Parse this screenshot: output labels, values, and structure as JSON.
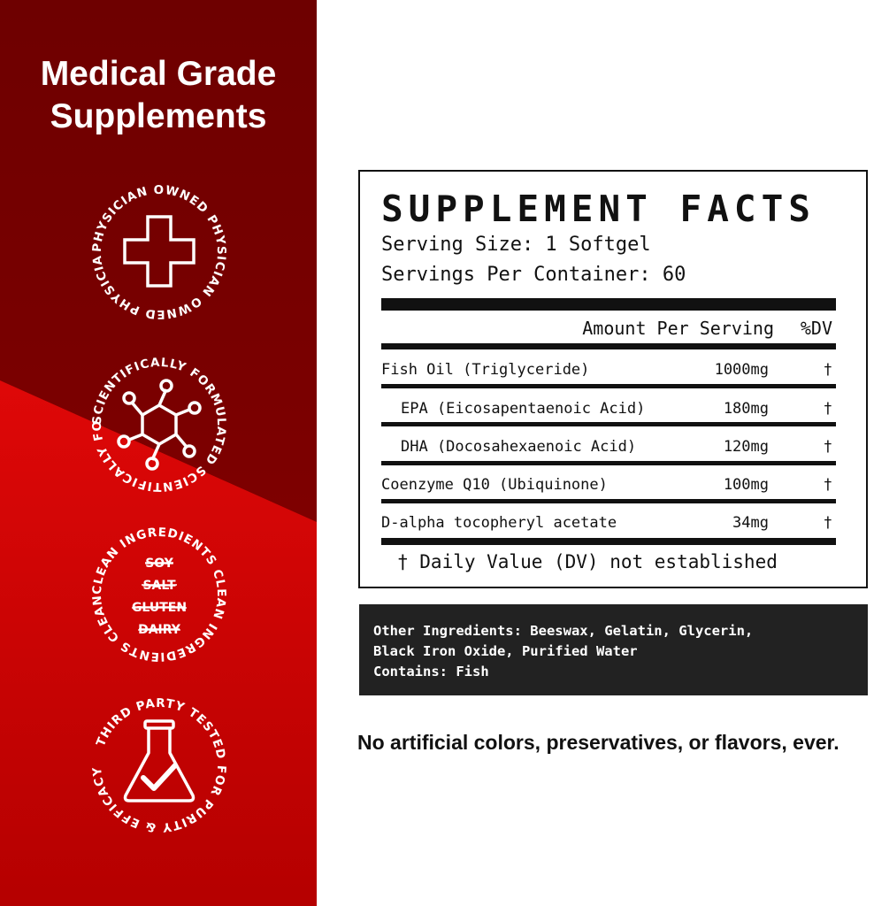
{
  "left_panel": {
    "headline": [
      "Medical Grade",
      "Supplements"
    ],
    "badges": [
      {
        "icon": "medical-cross-icon",
        "ring_text": "PHYSICIAN OWNED PHYSICIAN OWNED PHYSICIAN OWNED "
      },
      {
        "icon": "molecule-icon",
        "ring_text": "SCIENTIFICALLY FORMULATED SCIENTIFICALLY FORMULATED "
      },
      {
        "icon": "crossed-out-list",
        "ring_text": "CLEAN INGREDIENTS CLEAN INGREDIENTS CLEAN INGREDIENTS ",
        "items": [
          "SOY",
          "SALT",
          "GLUTEN",
          "DAIRY"
        ]
      },
      {
        "icon": "flask-check-icon",
        "ring_text": "THIRD PARTY TESTED FOR PURITY & EFFICACY"
      }
    ],
    "colors": {
      "dark_red": "#740000",
      "bright_red": "#e00808"
    }
  },
  "facts": {
    "title": "SUPPLEMENT FACTS",
    "serving_size": "Serving Size: 1 Softgel",
    "servings_per_container": "Servings Per Container: 60",
    "header_amount": "Amount Per Serving",
    "header_dv": "%DV",
    "rows": [
      {
        "name": "Fish Oil (Triglyceride)",
        "amount": "1000mg",
        "dv": "†"
      },
      {
        "name": "  EPA (Eicosapentaenoic Acid)",
        "amount": "180mg",
        "dv": "†"
      },
      {
        "name": "  DHA (Docosahexaenoic Acid)",
        "amount": "120mg",
        "dv": "†"
      },
      {
        "name": "Coenzyme Q10 (Ubiquinone)",
        "amount": "100mg",
        "dv": "†"
      },
      {
        "name": "D-alpha tocopheryl acetate",
        "amount": "34mg",
        "dv": "†"
      }
    ],
    "footnote": "† Daily Value (DV) not established"
  },
  "other_ingredients": [
    "Other Ingredients: Beeswax, Gelatin, Glycerin,",
    "Black Iron Oxide, Purified Water",
    "Contains: Fish"
  ],
  "tagline": "No artificial colors, preservatives, or flavors, ever."
}
